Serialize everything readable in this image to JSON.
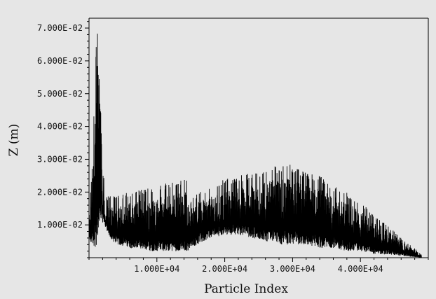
{
  "chart_data": {
    "type": "line",
    "title": "",
    "xlabel": "Particle Index",
    "ylabel": "Z (m)",
    "xlim": [
      0,
      50000
    ],
    "ylim": [
      0,
      0.073
    ],
    "xticks": [
      {
        "value": 10000,
        "label": "1.000E+04"
      },
      {
        "value": 20000,
        "label": "2.000E+04"
      },
      {
        "value": 30000,
        "label": "3.000E+04"
      },
      {
        "value": 40000,
        "label": "4.000E+04"
      }
    ],
    "yticks": [
      {
        "value": 0.01,
        "label": "1.000E-02"
      },
      {
        "value": 0.02,
        "label": "2.000E-02"
      },
      {
        "value": 0.03,
        "label": "3.000E-02"
      },
      {
        "value": 0.04,
        "label": "4.000E-02"
      },
      {
        "value": 0.05,
        "label": "5.000E-02"
      },
      {
        "value": 0.06,
        "label": "6.000E-02"
      },
      {
        "value": 0.07,
        "label": "7.000E-02"
      }
    ],
    "grid": false,
    "series": [
      {
        "color": "#000000",
        "envelope_x": [
          0,
          500,
          1000,
          1300,
          1500,
          1800,
          2000,
          2300,
          2500,
          3000,
          4000,
          6000,
          8000,
          10000,
          12000,
          14500,
          15000,
          16000,
          18000,
          20000,
          22000,
          24000,
          26000,
          27000,
          28000,
          29000,
          30000,
          32000,
          34000,
          36000,
          38000,
          40000,
          42000,
          44000,
          46000,
          48000,
          49000
        ],
        "envelope_upper": [
          0.012,
          0.03,
          0.065,
          0.072,
          0.07,
          0.062,
          0.04,
          0.022,
          0.019,
          0.019,
          0.019,
          0.02,
          0.021,
          0.022,
          0.023,
          0.024,
          0.018,
          0.02,
          0.022,
          0.024,
          0.025,
          0.026,
          0.027,
          0.028,
          0.028,
          0.029,
          0.028,
          0.026,
          0.025,
          0.022,
          0.02,
          0.017,
          0.013,
          0.01,
          0.006,
          0.003,
          0.001
        ],
        "envelope_lower": [
          0.005,
          0.004,
          0.003,
          0.006,
          0.008,
          0.009,
          0.01,
          0.01,
          0.009,
          0.006,
          0.004,
          0.003,
          0.002,
          0.002,
          0.002,
          0.002,
          0.003,
          0.004,
          0.006,
          0.007,
          0.007,
          0.006,
          0.005,
          0.005,
          0.004,
          0.004,
          0.004,
          0.004,
          0.003,
          0.003,
          0.002,
          0.002,
          0.001,
          0.001,
          0.0005,
          0.0002,
          0
        ]
      }
    ]
  }
}
